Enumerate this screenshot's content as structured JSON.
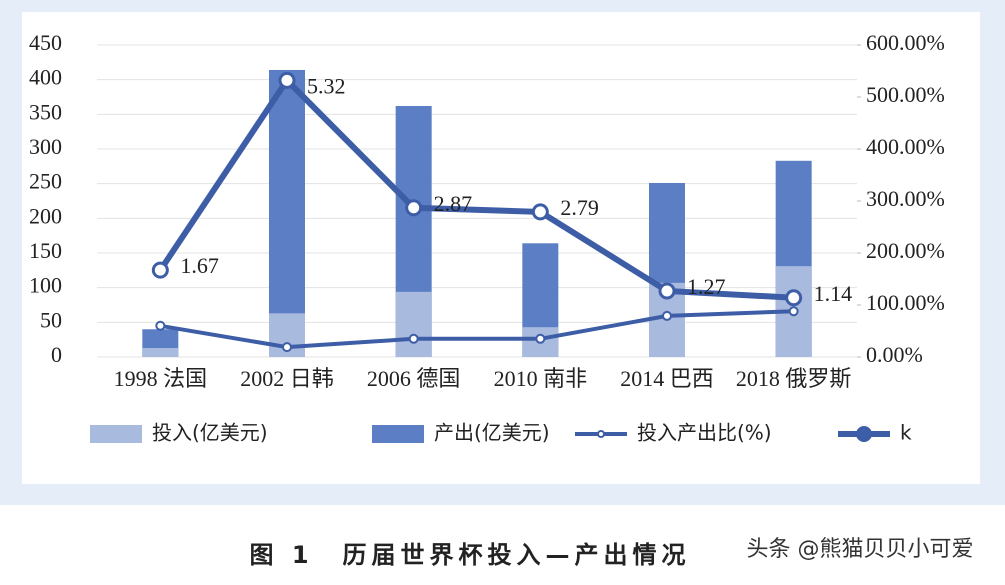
{
  "chart_data": {
    "type": "bar",
    "categories": [
      "1998 法国",
      "2002 日韩",
      "2006 德国",
      "2010 南非",
      "2014 巴西",
      "2018 俄罗斯"
    ],
    "series": [
      {
        "name": "产出(亿美元)",
        "type": "bar",
        "color": "#5b7ec4",
        "values": [
          40,
          414,
          362,
          164,
          251,
          283
        ]
      },
      {
        "name": "投入(亿美元)",
        "type": "bar",
        "color": "#a9badf",
        "values": [
          13,
          63,
          94,
          43,
          107,
          131
        ]
      },
      {
        "name": "投入产出比(%)",
        "type": "line",
        "axis": "y2",
        "color": "#3d5ea6",
        "values": [
          60,
          19,
          35,
          35,
          79,
          88
        ]
      },
      {
        "name": "k",
        "type": "line",
        "axis": "y2",
        "color": "#3d5ea6",
        "values": [
          167,
          532,
          287,
          279,
          127,
          114
        ],
        "value_labels": [
          "1.67",
          "5.32",
          "2.87",
          "2.79",
          "1.27",
          "1.14"
        ]
      }
    ],
    "ylim": [
      0,
      450
    ],
    "yticks": [
      0,
      50,
      100,
      150,
      200,
      250,
      300,
      350,
      400,
      450
    ],
    "y2lim": [
      0,
      600
    ],
    "y2ticks": [
      {
        "value": 0,
        "label": "0.00%"
      },
      {
        "value": 100,
        "label": "100.00%"
      },
      {
        "value": 200,
        "label": "200.00%"
      },
      {
        "value": 300,
        "label": "300.00%"
      },
      {
        "value": 400,
        "label": "400.00%"
      },
      {
        "value": 500,
        "label": "500.00%"
      },
      {
        "value": 600,
        "label": "600.00%"
      }
    ],
    "grid": true
  },
  "caption": "图 1　历届世界杯投入—产出情况",
  "watermark": "头条 @熊猫贝贝小可爱"
}
